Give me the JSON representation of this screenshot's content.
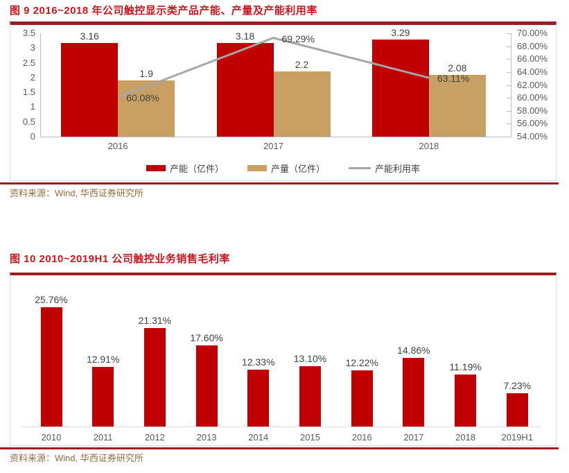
{
  "page": {
    "kind": "research-report-chart-excerpt"
  },
  "colors": {
    "bar_red": "#C00000",
    "bar_gold": "#C9A063",
    "line_gray": "#A6A6A6",
    "title_red": "#C8161D",
    "rule_red": "#9E1B1F",
    "source_brown": "#8E6F3F",
    "frame_border": "#D9D9D9",
    "axis_text": "#595959"
  },
  "figures": [
    {
      "label": "图 9",
      "title": "图 9  2016~2018 年公司触控显示类产品产能、产量及产能利用率",
      "source": "资料来源：Wind, 华西证券研究所"
    },
    {
      "label": "图 10",
      "title": "图 10  2010~2019H1 公司触控业务销售毛利率",
      "source": "资料来源：Wind, 华西证券研究所"
    }
  ],
  "chart_data": [
    {
      "type": "bar",
      "subtype": "combo-bar-line",
      "title": "2016~2018 年公司触控显示类产品产能、产量及产能利用率",
      "categories": [
        "2016",
        "2017",
        "2018"
      ],
      "series": [
        {
          "name": "产能（亿件）",
          "type": "bar",
          "axis": "left",
          "color": "#C00000",
          "values": [
            3.16,
            3.18,
            3.29
          ],
          "labels": [
            "3.16",
            "3.18",
            "3.29"
          ]
        },
        {
          "name": "产量（亿件）",
          "type": "bar",
          "axis": "left",
          "color": "#C9A063",
          "values": [
            1.9,
            2.2,
            2.08
          ],
          "labels": [
            "1.9",
            "2.2",
            "2.08"
          ]
        },
        {
          "name": "产能利用率",
          "type": "line",
          "axis": "right",
          "color": "#A6A6A6",
          "values": [
            60.08,
            69.29,
            63.11
          ],
          "labels": [
            "60.08%",
            "69.29%",
            "63.11%"
          ]
        }
      ],
      "left_axis": {
        "min": 0,
        "max": 3.5,
        "step": 0.5,
        "ticks": [
          "0",
          "0.5",
          "1",
          "1.5",
          "2",
          "2.5",
          "3",
          "3.5"
        ]
      },
      "right_axis": {
        "min": 54,
        "max": 70,
        "step": 2,
        "ticks": [
          "54.00%",
          "56.00%",
          "58.00%",
          "60.00%",
          "62.00%",
          "64.00%",
          "66.00%",
          "68.00%",
          "70.00%"
        ]
      },
      "grid": false,
      "legend_position": "bottom"
    },
    {
      "type": "bar",
      "title": "2010~2019H1 公司触控业务销售毛利率",
      "categories": [
        "2010",
        "2011",
        "2012",
        "2013",
        "2014",
        "2015",
        "2016",
        "2017",
        "2018",
        "2019H1"
      ],
      "values": [
        25.76,
        12.91,
        21.31,
        17.6,
        12.33,
        13.1,
        12.22,
        14.86,
        11.19,
        7.23
      ],
      "labels": [
        "25.76%",
        "12.91%",
        "21.31%",
        "17.60%",
        "12.33%",
        "13.10%",
        "12.22%",
        "14.86%",
        "11.19%",
        "7.23%"
      ],
      "bar_color": "#C00000",
      "ylim": [
        0,
        30
      ],
      "xlabel": "",
      "ylabel": "",
      "grid": false,
      "legend_position": "none"
    }
  ]
}
